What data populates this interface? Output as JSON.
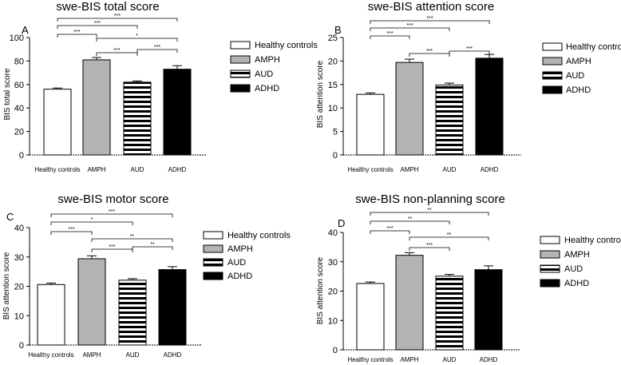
{
  "legend_labels": [
    "Healthy controls",
    "AMPH",
    "AUD",
    "ADHD"
  ],
  "colors": {
    "bar_stroke": "#000000",
    "amph_fill": "#b3b3b3",
    "adhd_fill": "#000000",
    "hc_fill": "#ffffff",
    "aud_stripe": "#000000"
  },
  "chart_data": [
    {
      "type": "bar",
      "panel_letter": "A",
      "title": "swe-BIS total score",
      "ylabel": "BIS total score",
      "xlabel": "",
      "categories": [
        "Healthy controls",
        "AMPH",
        "AUD",
        "ADHD"
      ],
      "values": [
        56,
        81,
        62,
        73
      ],
      "errors": [
        1,
        2,
        1,
        3
      ],
      "ylim": [
        0,
        100
      ],
      "yticks": [
        0,
        20,
        40,
        60,
        80,
        100
      ],
      "significance": [
        {
          "from": 0,
          "to": 3,
          "label": "***"
        },
        {
          "from": 0,
          "to": 2,
          "label": "***"
        },
        {
          "from": 0,
          "to": 1,
          "label": "***"
        },
        {
          "from": 1,
          "to": 3,
          "label": "*"
        },
        {
          "from": 2,
          "to": 3,
          "label": "***"
        },
        {
          "from": 1,
          "to": 2,
          "label": "***"
        }
      ]
    },
    {
      "type": "bar",
      "panel_letter": "B",
      "title": "swe-BIS attention score",
      "ylabel": "BIS attention score",
      "xlabel": "",
      "categories": [
        "Healthy controls",
        "AMPH",
        "AUD",
        "ADHD"
      ],
      "values": [
        12.9,
        19.7,
        14.9,
        20.6
      ],
      "errors": [
        0.3,
        0.7,
        0.4,
        0.8
      ],
      "ylim": [
        0,
        25
      ],
      "yticks": [
        0,
        5,
        10,
        15,
        20,
        25
      ],
      "significance": [
        {
          "from": 0,
          "to": 3,
          "label": "***"
        },
        {
          "from": 0,
          "to": 2,
          "label": "***"
        },
        {
          "from": 0,
          "to": 1,
          "label": "***"
        },
        {
          "from": 2,
          "to": 3,
          "label": "***"
        },
        {
          "from": 1,
          "to": 2,
          "label": "***"
        }
      ]
    },
    {
      "type": "bar",
      "panel_letter": "C",
      "title": "swe-BIS motor score",
      "ylabel": "BIS attention score",
      "xlabel": "",
      "categories": [
        "Healthy controls",
        "AMPH",
        "AUD",
        "ADHD"
      ],
      "values": [
        20.6,
        29.4,
        22.1,
        25.7
      ],
      "errors": [
        0.5,
        1.0,
        0.5,
        1.0
      ],
      "ylim": [
        0,
        40
      ],
      "yticks": [
        0,
        10,
        20,
        30,
        40
      ],
      "significance": [
        {
          "from": 0,
          "to": 3,
          "label": "***"
        },
        {
          "from": 0,
          "to": 2,
          "label": "*"
        },
        {
          "from": 0,
          "to": 1,
          "label": "***"
        },
        {
          "from": 1,
          "to": 3,
          "label": "**"
        },
        {
          "from": 2,
          "to": 3,
          "label": "**"
        },
        {
          "from": 1,
          "to": 2,
          "label": "***"
        }
      ]
    },
    {
      "type": "bar",
      "panel_letter": "D",
      "title": "swe-BIS non-planning score",
      "ylabel": "BIS attention score",
      "xlabel": "",
      "categories": [
        "Healthy controls",
        "AMPH",
        "AUD",
        "ADHD"
      ],
      "values": [
        22.6,
        32.2,
        25.1,
        27.3
      ],
      "errors": [
        0.5,
        0.9,
        0.6,
        1.3
      ],
      "ylim": [
        0,
        40
      ],
      "yticks": [
        0,
        10,
        20,
        30,
        40
      ],
      "significance": [
        {
          "from": 0,
          "to": 3,
          "label": "**"
        },
        {
          "from": 0,
          "to": 2,
          "label": "**"
        },
        {
          "from": 0,
          "to": 1,
          "label": "***"
        },
        {
          "from": 1,
          "to": 3,
          "label": "**"
        },
        {
          "from": 1,
          "to": 2,
          "label": "***"
        }
      ]
    }
  ]
}
